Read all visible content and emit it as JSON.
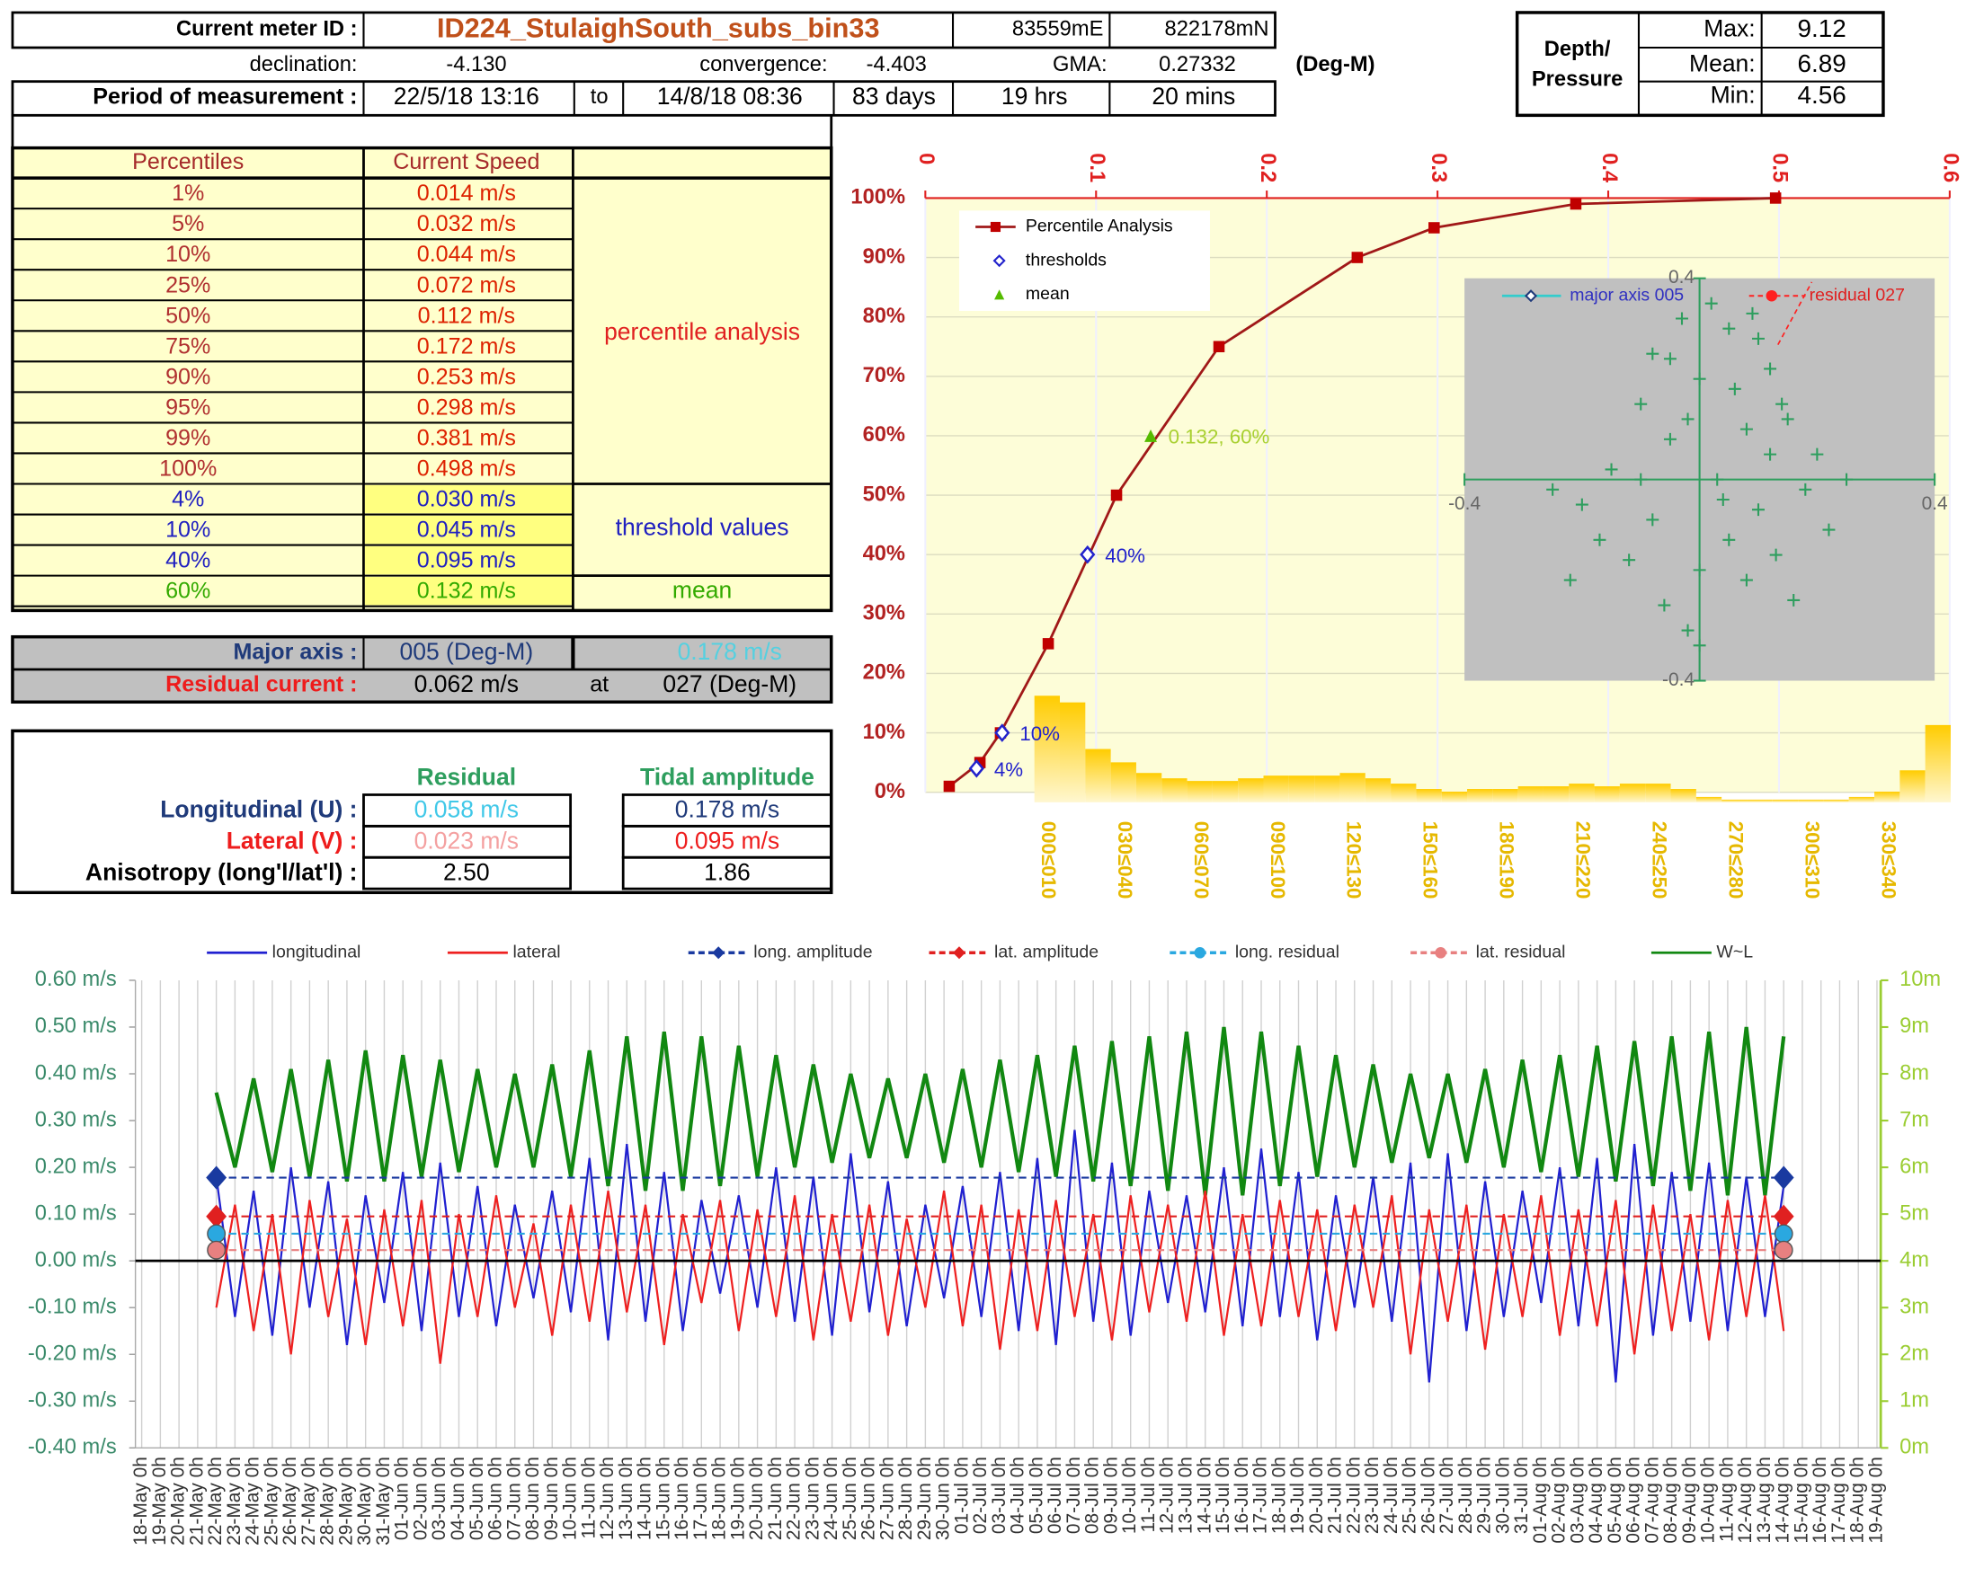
{
  "header": {
    "meter_label": "Current meter ID :",
    "meter_id": "ID224_StulaighSouth_subs_bin33",
    "easting": "83559mE",
    "northing": "822178mN",
    "declination_label": "declination:",
    "declination": "-4.130",
    "convergence_label": "convergence:",
    "convergence": "-4.403",
    "gma_label": "GMA:",
    "gma": "0.27332",
    "units": "(Deg-M)",
    "period_label": "Period of measurement :",
    "start": "22/5/18 13:16",
    "to": "to",
    "end": "14/8/18 08:36",
    "days": "83 days",
    "hours": "19 hrs",
    "mins": "20  mins"
  },
  "depth": {
    "label_1": "Depth/",
    "label_2": "Pressure",
    "rows": [
      [
        "Max:",
        "9.12"
      ],
      [
        "Mean:",
        "6.89"
      ],
      [
        "Min:",
        "4.56"
      ]
    ]
  },
  "percentile_table": {
    "headers": [
      "Percentiles",
      "Current Speed"
    ],
    "rows": [
      [
        "1%",
        "0.014 m/s"
      ],
      [
        "5%",
        "0.032 m/s"
      ],
      [
        "10%",
        "0.044 m/s"
      ],
      [
        "25%",
        "0.072 m/s"
      ],
      [
        "50%",
        "0.112 m/s"
      ],
      [
        "75%",
        "0.172 m/s"
      ],
      [
        "90%",
        "0.253 m/s"
      ],
      [
        "95%",
        "0.298 m/s"
      ],
      [
        "99%",
        "0.381 m/s"
      ],
      [
        "100%",
        "0.498 m/s"
      ],
      [
        "4%",
        "0.030 m/s"
      ],
      [
        "10%",
        "0.045 m/s"
      ],
      [
        "40%",
        "0.095 m/s"
      ],
      [
        "60%",
        "0.132 m/s"
      ]
    ],
    "notes": [
      "percentile analysis",
      "threshold values",
      "mean"
    ]
  },
  "axis_table": {
    "major_label": "Major axis :",
    "major_dir": "005 (Deg-M)",
    "major_speed": "0.178 m/s",
    "residual_label": "Residual current :",
    "residual_speed": "0.062 m/s",
    "at": "at",
    "residual_dir": "027 (Deg-M)"
  },
  "components_table": {
    "headers": [
      "Residual",
      "Tidal amplitude"
    ],
    "rows": [
      [
        "Longitudinal (U) :",
        "0.058 m/s",
        "0.178 m/s"
      ],
      [
        "Lateral (V) :",
        "0.023 m/s",
        "0.095 m/s"
      ],
      [
        "Anisotropy (long'l/lat'l) :",
        "2.50",
        "1.86"
      ]
    ]
  },
  "chart_data": [
    {
      "type": "line",
      "x_axis_position": "top",
      "xlim": [
        0,
        0.6
      ],
      "xticks": [
        0,
        0.1,
        0.2,
        0.3,
        0.4,
        0.5,
        0.6
      ],
      "ylim": [
        0,
        100
      ],
      "yticks": [
        {
          "value": 0,
          "label": "0%"
        },
        {
          "value": 10,
          "label": "10%"
        },
        {
          "value": 20,
          "label": "20%"
        },
        {
          "value": 30,
          "label": "30%"
        },
        {
          "value": 40,
          "label": "40%"
        },
        {
          "value": 50,
          "label": "50%"
        },
        {
          "value": 60,
          "label": "60%"
        },
        {
          "value": 70,
          "label": "70%"
        },
        {
          "value": 80,
          "label": "80%"
        },
        {
          "value": 90,
          "label": "90%"
        },
        {
          "value": 100,
          "label": "100%"
        }
      ],
      "grid": true,
      "legend": "top-left",
      "series": [
        {
          "name": "Percentile Analysis",
          "color": "#a01818",
          "marker": "square",
          "line": true,
          "x": [
            0.014,
            0.032,
            0.044,
            0.072,
            0.112,
            0.172,
            0.253,
            0.298,
            0.381,
            0.498
          ],
          "values": [
            1,
            5,
            10,
            25,
            50,
            75,
            90,
            95,
            99,
            100
          ]
        },
        {
          "name": "thresholds",
          "color": "#2222cc",
          "marker": "diamond",
          "line": false,
          "x": [
            0.03,
            0.045,
            0.095
          ],
          "values": [
            4,
            10,
            40
          ],
          "value_labels": [
            "4%",
            "10%",
            "40%"
          ]
        },
        {
          "name": "mean",
          "color": "#55bb00",
          "marker": "triangle",
          "line": false,
          "x": [
            0.132
          ],
          "values": [
            60
          ],
          "value_labels": [
            "0.132, 60%"
          ]
        }
      ]
    },
    {
      "type": "bar",
      "color": "#ffcc00",
      "categories": [
        "000≤010",
        null,
        null,
        "030≤040",
        null,
        null,
        "060≤070",
        null,
        null,
        "090≤100",
        null,
        null,
        "120≤130",
        null,
        null,
        "150≤160",
        null,
        null,
        "180≤190",
        null,
        null,
        "210≤220",
        null,
        null,
        "240≤250",
        null,
        null,
        "270≤280",
        null,
        null,
        "300≤310",
        null,
        null,
        "330≤340",
        null,
        null
      ],
      "values": [
        80,
        75,
        40,
        30,
        22,
        18,
        16,
        16,
        18,
        20,
        20,
        20,
        22,
        18,
        14,
        10,
        8,
        10,
        10,
        12,
        12,
        14,
        12,
        14,
        14,
        10,
        4,
        2,
        2,
        2,
        2,
        2,
        4,
        8,
        24,
        58
      ]
    },
    {
      "type": "scatter",
      "xlim": [
        -0.4,
        0.4
      ],
      "ylim": [
        -0.4,
        0.4
      ],
      "xticks": [
        -0.4,
        0.4
      ],
      "yticks": [
        -0.4,
        0.4
      ],
      "legend_items": [
        {
          "name": "major axis 005",
          "color": "#33cccc"
        },
        {
          "name": "residual 027",
          "color": "#ff2020"
        }
      ],
      "series": [
        {
          "color": "#2e9e5e",
          "x": [
            0.02,
            -0.03,
            0.05,
            0.1,
            -0.08,
            0.12,
            0.0,
            -0.1,
            0.15,
            0.08,
            -0.05,
            0.2,
            -0.15,
            0.03,
            0.18,
            -0.2,
            0.1,
            -0.08,
            0.22,
            -0.17,
            0.05,
            0.13,
            -0.12,
            0.0,
            -0.22,
            0.08,
            0.16,
            -0.06,
            -0.02,
            0.0,
            0.25,
            -0.25,
            0.06,
            -0.02,
            0.12,
            -0.1,
            0.04,
            -0.05,
            0.09,
            0.14
          ],
          "values": [
            0.35,
            0.32,
            0.3,
            0.28,
            0.25,
            0.22,
            0.2,
            0.15,
            0.12,
            0.1,
            0.08,
            0.05,
            0.02,
            0.0,
            -0.02,
            -0.05,
            -0.06,
            -0.08,
            -0.1,
            -0.12,
            -0.12,
            -0.15,
            -0.16,
            -0.18,
            -0.2,
            -0.2,
            -0.24,
            -0.25,
            -0.3,
            -0.33,
            0.0,
            -0.02,
            0.18,
            0.12,
            0.05,
            0.0,
            -0.04,
            0.24,
            0.33,
            0.15
          ]
        }
      ]
    },
    {
      "type": "line",
      "grid": true,
      "legend": "top",
      "categories": [
        "18-May 0h",
        "19-May 0h",
        "20-May 0h",
        "21-May 0h",
        "22-May 0h",
        "23-May 0h",
        "24-May 0h",
        "25-May 0h",
        "26-May 0h",
        "27-May 0h",
        "28-May 0h",
        "29-May 0h",
        "30-May 0h",
        "31-May 0h",
        "01-Jun 0h",
        "02-Jun 0h",
        "03-Jun 0h",
        "04-Jun 0h",
        "05-Jun 0h",
        "06-Jun 0h",
        "07-Jun 0h",
        "08-Jun 0h",
        "09-Jun 0h",
        "10-Jun 0h",
        "11-Jun 0h",
        "12-Jun 0h",
        "13-Jun 0h",
        "14-Jun 0h",
        "15-Jun 0h",
        "16-Jun 0h",
        "17-Jun 0h",
        "18-Jun 0h",
        "19-Jun 0h",
        "20-Jun 0h",
        "21-Jun 0h",
        "22-Jun 0h",
        "23-Jun 0h",
        "24-Jun 0h",
        "25-Jun 0h",
        "26-Jun 0h",
        "27-Jun 0h",
        "28-Jun 0h",
        "29-Jun 0h",
        "30-Jun 0h",
        "01-Jul 0h",
        "02-Jul 0h",
        "03-Jul 0h",
        "04-Jul 0h",
        "05-Jul 0h",
        "06-Jul 0h",
        "07-Jul 0h",
        "08-Jul 0h",
        "09-Jul 0h",
        "10-Jul 0h",
        "11-Jul 0h",
        "12-Jul 0h",
        "13-Jul 0h",
        "14-Jul 0h",
        "15-Jul 0h",
        "16-Jul 0h",
        "17-Jul 0h",
        "18-Jul 0h",
        "19-Jul 0h",
        "20-Jul 0h",
        "21-Jul 0h",
        "22-Jul 0h",
        "23-Jul 0h",
        "24-Jul 0h",
        "25-Jul 0h",
        "26-Jul 0h",
        "27-Jul 0h",
        "28-Jul 0h",
        "29-Jul 0h",
        "30-Jul 0h",
        "31-Jul 0h",
        "01-Aug 0h",
        "02-Aug 0h",
        "03-Aug 0h",
        "04-Aug 0h",
        "05-Aug 0h",
        "06-Aug 0h",
        "07-Aug 0h",
        "08-Aug 0h",
        "09-Aug 0h",
        "10-Aug 0h",
        "11-Aug 0h",
        "12-Aug 0h",
        "13-Aug 0h",
        "14-Aug 0h",
        "15-Aug 0h",
        "16-Aug 0h",
        "17-Aug 0h",
        "18-Aug 0h",
        "19-Aug 0h"
      ],
      "ylim": [
        -0.4,
        0.6
      ],
      "yticks": [
        {
          "value": 0.6,
          "label": "0.60 m/s"
        },
        {
          "value": 0.5,
          "label": "0.50 m/s"
        },
        {
          "value": 0.4,
          "label": "0.40 m/s"
        },
        {
          "value": 0.3,
          "label": "0.30 m/s"
        },
        {
          "value": 0.2,
          "label": "0.20 m/s"
        },
        {
          "value": 0.1,
          "label": "0.10 m/s"
        },
        {
          "value": 0,
          "label": "0.00 m/s"
        },
        {
          "value": -0.1,
          "label": "-0.10 m/s"
        },
        {
          "value": -0.2,
          "label": "-0.20 m/s"
        },
        {
          "value": -0.3,
          "label": "-0.30 m/s"
        },
        {
          "value": -0.4,
          "label": "-0.40 m/s"
        }
      ],
      "y2lim": [
        0,
        10
      ],
      "y2ticks": [
        {
          "value": 10,
          "label": "10m"
        },
        {
          "value": 9,
          "label": "9m"
        },
        {
          "value": 8,
          "label": "8m"
        },
        {
          "value": 7,
          "label": "7m"
        },
        {
          "value": 6,
          "label": "6m"
        },
        {
          "value": 5,
          "label": "5m"
        },
        {
          "value": 4,
          "label": "4m"
        },
        {
          "value": 3,
          "label": "3m"
        },
        {
          "value": 2,
          "label": "2m"
        },
        {
          "value": 1,
          "label": "1m"
        },
        {
          "value": 0,
          "label": "0m"
        }
      ],
      "series": [
        {
          "name": "longitudinal",
          "color": "#2020d0",
          "values": [
            null,
            null,
            null,
            null,
            0.18,
            -0.12,
            0.15,
            -0.16,
            0.2,
            -0.1,
            0.17,
            -0.18,
            0.14,
            -0.09,
            0.19,
            -0.15,
            0.21,
            -0.12,
            0.16,
            -0.14,
            0.12,
            -0.08,
            0.15,
            -0.11,
            0.22,
            -0.17,
            0.25,
            -0.13,
            0.19,
            -0.15,
            0.13,
            -0.07,
            0.14,
            -0.1,
            0.2,
            -0.13,
            0.18,
            -0.16,
            0.23,
            -0.11,
            0.17,
            -0.14,
            0.12,
            -0.08,
            0.16,
            -0.12,
            0.19,
            -0.15,
            0.22,
            -0.18,
            0.28,
            -0.13,
            0.21,
            -0.16,
            0.15,
            -0.09,
            0.14,
            -0.11,
            0.2,
            -0.14,
            0.24,
            -0.12,
            0.19,
            -0.17,
            0.14,
            -0.1,
            0.18,
            -0.13,
            0.21,
            -0.26,
            0.23,
            -0.15,
            0.17,
            -0.12,
            0.15,
            -0.09,
            0.2,
            -0.14,
            0.22,
            -0.26,
            0.25,
            -0.16,
            0.19,
            -0.13,
            0.21,
            -0.15,
            0.18,
            -0.12,
            0.16,
            null,
            null,
            null,
            null,
            null
          ]
        },
        {
          "name": "lateral",
          "color": "#ee2020",
          "values": [
            null,
            null,
            null,
            null,
            -0.1,
            0.12,
            -0.15,
            0.1,
            -0.2,
            0.13,
            -0.12,
            0.09,
            -0.18,
            0.11,
            -0.14,
            0.13,
            -0.22,
            0.1,
            -0.12,
            0.14,
            -0.1,
            0.08,
            -0.16,
            0.12,
            -0.13,
            0.15,
            -0.11,
            0.12,
            -0.18,
            0.1,
            -0.09,
            0.13,
            -0.15,
            0.11,
            -0.12,
            0.14,
            -0.17,
            0.1,
            -0.13,
            0.12,
            -0.16,
            0.09,
            -0.1,
            0.15,
            -0.14,
            0.12,
            -0.19,
            0.11,
            -0.15,
            0.13,
            -0.12,
            0.1,
            -0.17,
            0.14,
            -0.11,
            0.12,
            -0.13,
            0.15,
            -0.16,
            0.1,
            -0.14,
            0.13,
            -0.12,
            0.11,
            -0.15,
            0.12,
            -0.1,
            0.14,
            -0.2,
            0.11,
            -0.13,
            0.12,
            -0.19,
            0.1,
            -0.12,
            0.14,
            -0.16,
            0.11,
            -0.14,
            0.13,
            -0.2,
            0.12,
            -0.15,
            0.1,
            -0.17,
            0.13,
            -0.12,
            0.14,
            -0.15,
            null,
            null,
            null,
            null,
            null
          ]
        },
        {
          "name": "W~L",
          "color": "#118811",
          "axis": "y2",
          "values": [
            null,
            null,
            null,
            null,
            7.6,
            6.0,
            7.9,
            5.9,
            8.1,
            5.8,
            8.3,
            5.7,
            8.5,
            5.7,
            8.4,
            5.8,
            8.3,
            5.9,
            8.1,
            6.0,
            8.0,
            6.0,
            8.2,
            5.8,
            8.5,
            5.6,
            8.8,
            5.5,
            8.9,
            5.5,
            8.8,
            5.6,
            8.6,
            5.8,
            8.4,
            6.0,
            8.2,
            6.1,
            8.0,
            6.2,
            7.9,
            6.2,
            8.0,
            6.1,
            8.1,
            6.0,
            8.3,
            5.9,
            8.4,
            5.8,
            8.6,
            5.7,
            8.7,
            5.6,
            8.8,
            5.5,
            8.9,
            5.4,
            9.0,
            5.4,
            8.9,
            5.6,
            8.6,
            5.8,
            8.4,
            6.0,
            8.2,
            6.1,
            8.0,
            6.2,
            8.0,
            6.1,
            8.1,
            6.0,
            8.3,
            5.9,
            8.4,
            5.8,
            8.6,
            5.7,
            8.7,
            5.6,
            8.8,
            5.5,
            8.9,
            5.4,
            9.0,
            5.4,
            8.8,
            null,
            null,
            null,
            null,
            null
          ]
        }
      ],
      "reference_lines": [
        {
          "name": "long. amplitude",
          "color": "#1a3aa0",
          "value": 0.178,
          "marker": "diamond"
        },
        {
          "name": "lat. amplitude",
          "color": "#e02020",
          "value": 0.095,
          "marker": "diamond"
        },
        {
          "name": "long. residual",
          "color": "#2aa8e0",
          "value": 0.058,
          "marker": "circle"
        },
        {
          "name": "lat. residual",
          "color": "#e88080",
          "value": 0.023,
          "marker": "circle"
        }
      ]
    }
  ]
}
